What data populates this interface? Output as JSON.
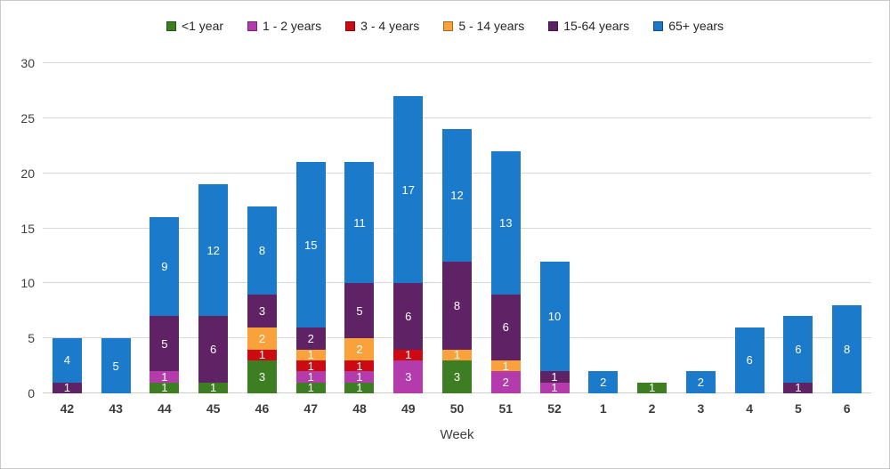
{
  "chart_data": {
    "type": "bar",
    "stacked": true,
    "title": "",
    "xlabel": "Week",
    "ylabel": "",
    "ylim": [
      0,
      30
    ],
    "yticks": [
      0,
      5,
      10,
      15,
      20,
      25,
      30
    ],
    "grid": true,
    "legend_position": "top",
    "show_data_labels": true,
    "data_label_color": "#FFFFFF",
    "categories": [
      "42",
      "43",
      "44",
      "45",
      "46",
      "47",
      "48",
      "49",
      "50",
      "51",
      "52",
      "1",
      "2",
      "3",
      "4",
      "5",
      "6"
    ],
    "series": [
      {
        "name": "<1 year",
        "color": "#3E7E23",
        "values": [
          0,
          0,
          1,
          1,
          3,
          1,
          1,
          0,
          3,
          0,
          0,
          0,
          1,
          0,
          0,
          0,
          0
        ]
      },
      {
        "name": "1 - 2 years",
        "color": "#B43BAC",
        "values": [
          0,
          0,
          1,
          0,
          0,
          1,
          1,
          3,
          0,
          2,
          1,
          0,
          0,
          0,
          0,
          0,
          0
        ]
      },
      {
        "name": "3 - 4 years",
        "color": "#CC0A12",
        "values": [
          0,
          0,
          0,
          0,
          1,
          1,
          1,
          1,
          0,
          0,
          0,
          0,
          0,
          0,
          0,
          0,
          0
        ]
      },
      {
        "name": "5 - 14 years",
        "color": "#F9A23C",
        "values": [
          0,
          0,
          0,
          0,
          2,
          1,
          2,
          0,
          1,
          1,
          0,
          0,
          0,
          0,
          0,
          0,
          0
        ]
      },
      {
        "name": "15-64 years",
        "color": "#5F2264",
        "values": [
          1,
          0,
          5,
          6,
          3,
          2,
          5,
          6,
          8,
          6,
          1,
          0,
          0,
          0,
          0,
          1,
          0
        ]
      },
      {
        "name": "65+ years",
        "color": "#1B7AC9",
        "values": [
          4,
          5,
          9,
          12,
          8,
          15,
          11,
          17,
          12,
          13,
          10,
          2,
          0,
          2,
          6,
          6,
          8
        ]
      }
    ]
  },
  "axis_style": {
    "tick_color": "#404040",
    "grid_color": "#D9D9D9"
  }
}
